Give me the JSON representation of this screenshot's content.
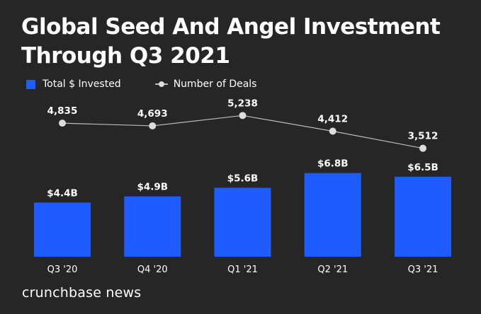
{
  "colors": {
    "background": "#262626",
    "bar": "#1f5cff",
    "line": "#bbbbbb",
    "point": "#dcdcdc",
    "text": "#ffffff"
  },
  "brand": "crunchbase news",
  "chart_data": {
    "type": "bar",
    "title": "Global Seed And Angel Investment Through Q3 2021",
    "categories": [
      "Q3 '20",
      "Q4 '20",
      "Q1 '21",
      "Q2 '21",
      "Q3 '21"
    ],
    "series": [
      {
        "name": "Total $ Invested",
        "type": "bar",
        "values": [
          4.4,
          4.9,
          5.6,
          6.8,
          6.5
        ],
        "labels": [
          "$4.4B",
          "$4.9B",
          "$5.6B",
          "$6.8B",
          "$6.5B"
        ]
      },
      {
        "name": "Number of Deals",
        "type": "line",
        "values": [
          4835,
          4693,
          5238,
          4412,
          3512
        ],
        "labels": [
          "4,835",
          "4,693",
          "5,238",
          "4,412",
          "3,512"
        ]
      }
    ],
    "legend": "top-left",
    "grid": false
  }
}
